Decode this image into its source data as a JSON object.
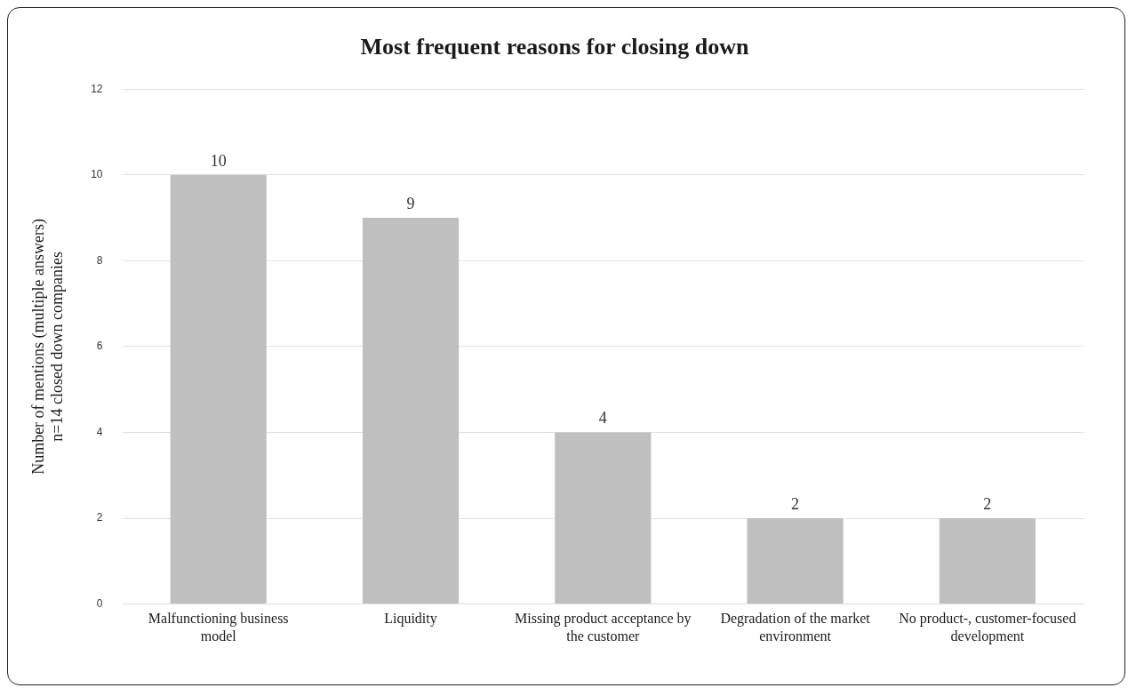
{
  "chart_data": {
    "type": "bar",
    "title": "Most frequent reasons for closing down",
    "ylabel": "Number of mentions (multiple answers)\nn=14 closed down companies",
    "categories": [
      "Malfunctioning business model",
      "Liquidity",
      "Missing product acceptance by the customer",
      "Degradation of the market environment",
      "No product-, customer-focused development"
    ],
    "values": [
      10,
      9,
      4,
      2,
      2
    ],
    "color": "#bfbfbf",
    "ylim": [
      0,
      12
    ],
    "yticks": [
      0,
      2,
      4,
      6,
      8,
      10,
      12
    ],
    "grid": "y",
    "data_labels": true
  }
}
